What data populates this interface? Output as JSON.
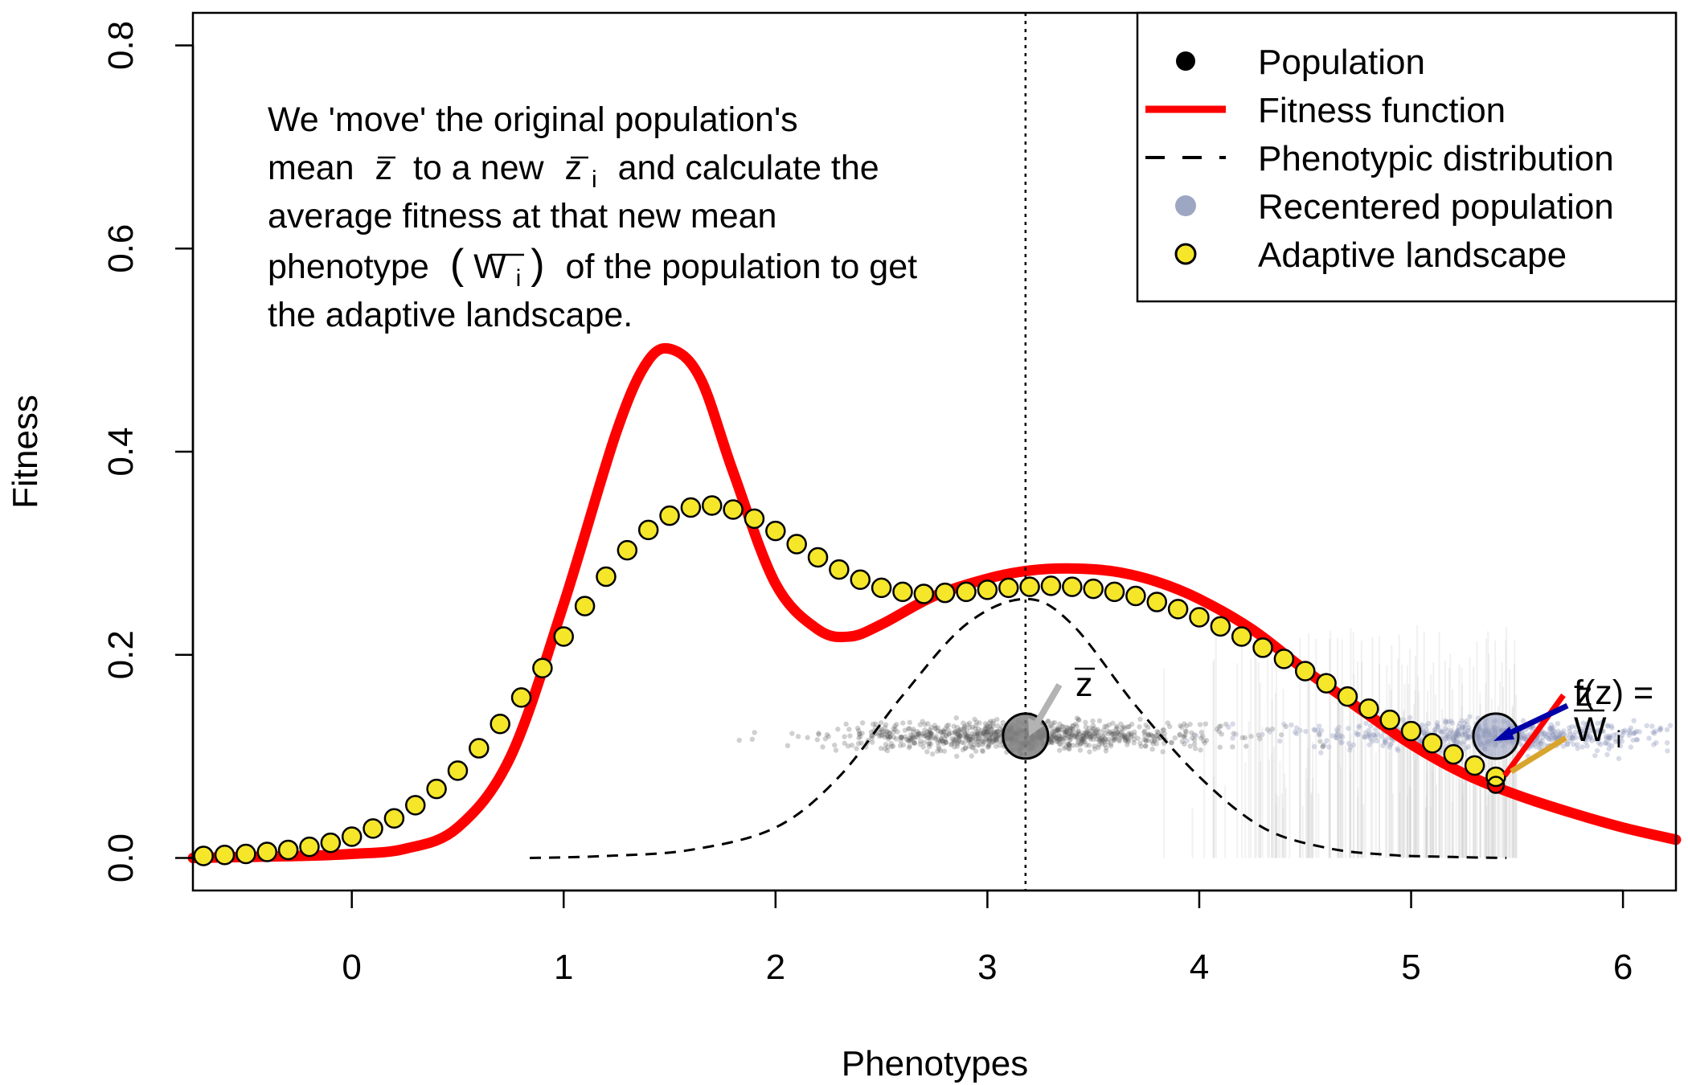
{
  "chart_data": {
    "type": "line",
    "title": "",
    "xlabel": "Phenotypes",
    "ylabel": "Fitness",
    "xlim": [
      -0.75,
      6.25
    ],
    "ylim": [
      -0.032,
      0.832
    ],
    "xticks": [
      0,
      1,
      2,
      3,
      4,
      5,
      6
    ],
    "yticks": [
      0.0,
      0.2,
      0.4,
      0.6,
      0.8
    ],
    "xtick_labels": [
      "0",
      "1",
      "2",
      "3",
      "4",
      "5",
      "6"
    ],
    "ytick_labels": [
      "0.0",
      "0.2",
      "0.4",
      "0.6",
      "0.8"
    ],
    "grid": false,
    "legend_position": "top-right",
    "legend": [
      {
        "label": "Population",
        "marker": "point",
        "color": "#000000"
      },
      {
        "label": "Fitness function",
        "marker": "line",
        "color": "#ff0000"
      },
      {
        "label": "Phenotypic distribution",
        "marker": "dashed",
        "color": "#000000"
      },
      {
        "label": "Recentered population",
        "marker": "point",
        "color": "#8c96b9"
      },
      {
        "label": "Adaptive landscape",
        "marker": "point",
        "color": "#f5e62a"
      }
    ],
    "fitness_function": {
      "name": "Fitness function",
      "color": "#ff0000",
      "x": [
        -0.75,
        -0.5,
        -0.25,
        0,
        0.25,
        0.5,
        0.75,
        1,
        1.25,
        1.4,
        1.52,
        1.65,
        1.8,
        2,
        2.2,
        2.35,
        2.5,
        2.75,
        3,
        3.2,
        3.4,
        3.6,
        3.8,
        4,
        4.25,
        4.5,
        4.75,
        5,
        5.25,
        5.5,
        5.75,
        6,
        6.25
      ],
      "y": [
        0,
        0.001,
        0.002,
        0.004,
        0.009,
        0.03,
        0.1,
        0.25,
        0.42,
        0.49,
        0.5,
        0.47,
        0.38,
        0.27,
        0.225,
        0.218,
        0.23,
        0.258,
        0.275,
        0.283,
        0.285,
        0.282,
        0.272,
        0.255,
        0.225,
        0.185,
        0.148,
        0.112,
        0.083,
        0.062,
        0.045,
        0.03,
        0.018
      ]
    },
    "phenotypic_distribution": {
      "name": "Phenotypic distribution",
      "color": "#000000",
      "x": [
        0.84,
        1.2,
        1.6,
        2,
        2.3,
        2.6,
        2.9,
        3.18,
        3.4,
        3.7,
        4,
        4.3,
        4.6,
        4.9,
        5.2,
        5.45
      ],
      "y": [
        0,
        0.002,
        0.008,
        0.03,
        0.08,
        0.16,
        0.23,
        0.255,
        0.23,
        0.15,
        0.08,
        0.03,
        0.01,
        0.003,
        0.001,
        0
      ]
    },
    "adaptive_landscape": {
      "name": "Adaptive landscape",
      "color": "#f5e62a",
      "x": [
        -0.7,
        -0.6,
        -0.5,
        -0.4,
        -0.3,
        -0.2,
        -0.1,
        0,
        0.1,
        0.2,
        0.3,
        0.4,
        0.5,
        0.6,
        0.7,
        0.8,
        0.9,
        1,
        1.1,
        1.2,
        1.3,
        1.4,
        1.5,
        1.6,
        1.7,
        1.8,
        1.9,
        2,
        2.1,
        2.2,
        2.3,
        2.4,
        2.5,
        2.6,
        2.7,
        2.8,
        2.9,
        3,
        3.1,
        3.2,
        3.3,
        3.4,
        3.5,
        3.6,
        3.7,
        3.8,
        3.9,
        4,
        4.1,
        4.2,
        4.3,
        4.4,
        4.5,
        4.6,
        4.7,
        4.8,
        4.9,
        5,
        5.1,
        5.2,
        5.3,
        5.4
      ],
      "y": [
        0.002,
        0.003,
        0.004,
        0.006,
        0.008,
        0.011,
        0.015,
        0.021,
        0.029,
        0.039,
        0.052,
        0.068,
        0.086,
        0.108,
        0.132,
        0.158,
        0.187,
        0.218,
        0.248,
        0.277,
        0.303,
        0.323,
        0.337,
        0.345,
        0.347,
        0.343,
        0.334,
        0.322,
        0.309,
        0.296,
        0.284,
        0.274,
        0.266,
        0.262,
        0.26,
        0.261,
        0.262,
        0.264,
        0.266,
        0.267,
        0.268,
        0.267,
        0.265,
        0.262,
        0.258,
        0.252,
        0.245,
        0.237,
        0.228,
        0.218,
        0.207,
        0.196,
        0.184,
        0.172,
        0.159,
        0.147,
        0.136,
        0.125,
        0.113,
        0.102,
        0.091,
        0.08
      ]
    },
    "population_mean": {
      "x": 3.18,
      "y": 0.12,
      "label": "z"
    },
    "recentered_mean": {
      "x": 5.4,
      "y": 0.12
    },
    "mean_line_x": 3.18,
    "population_scatter": {
      "x_range": [
        1.5,
        4.7
      ],
      "y_center": 0.12
    },
    "recentered_scatter": {
      "x_range": [
        3.7,
        6.25
      ],
      "y_center": 0.12
    },
    "annotation_lines": [
      "We 'move' the original population's",
      "mean",
      "to a new",
      "and calculate the",
      "average fitness at that new mean",
      "phenotype",
      "of the population to get",
      "the adaptive landscape."
    ],
    "right_labels": {
      "fz": "f(z) =",
      "zi": "z",
      "wi": "W",
      "sub_i": "i"
    }
  }
}
